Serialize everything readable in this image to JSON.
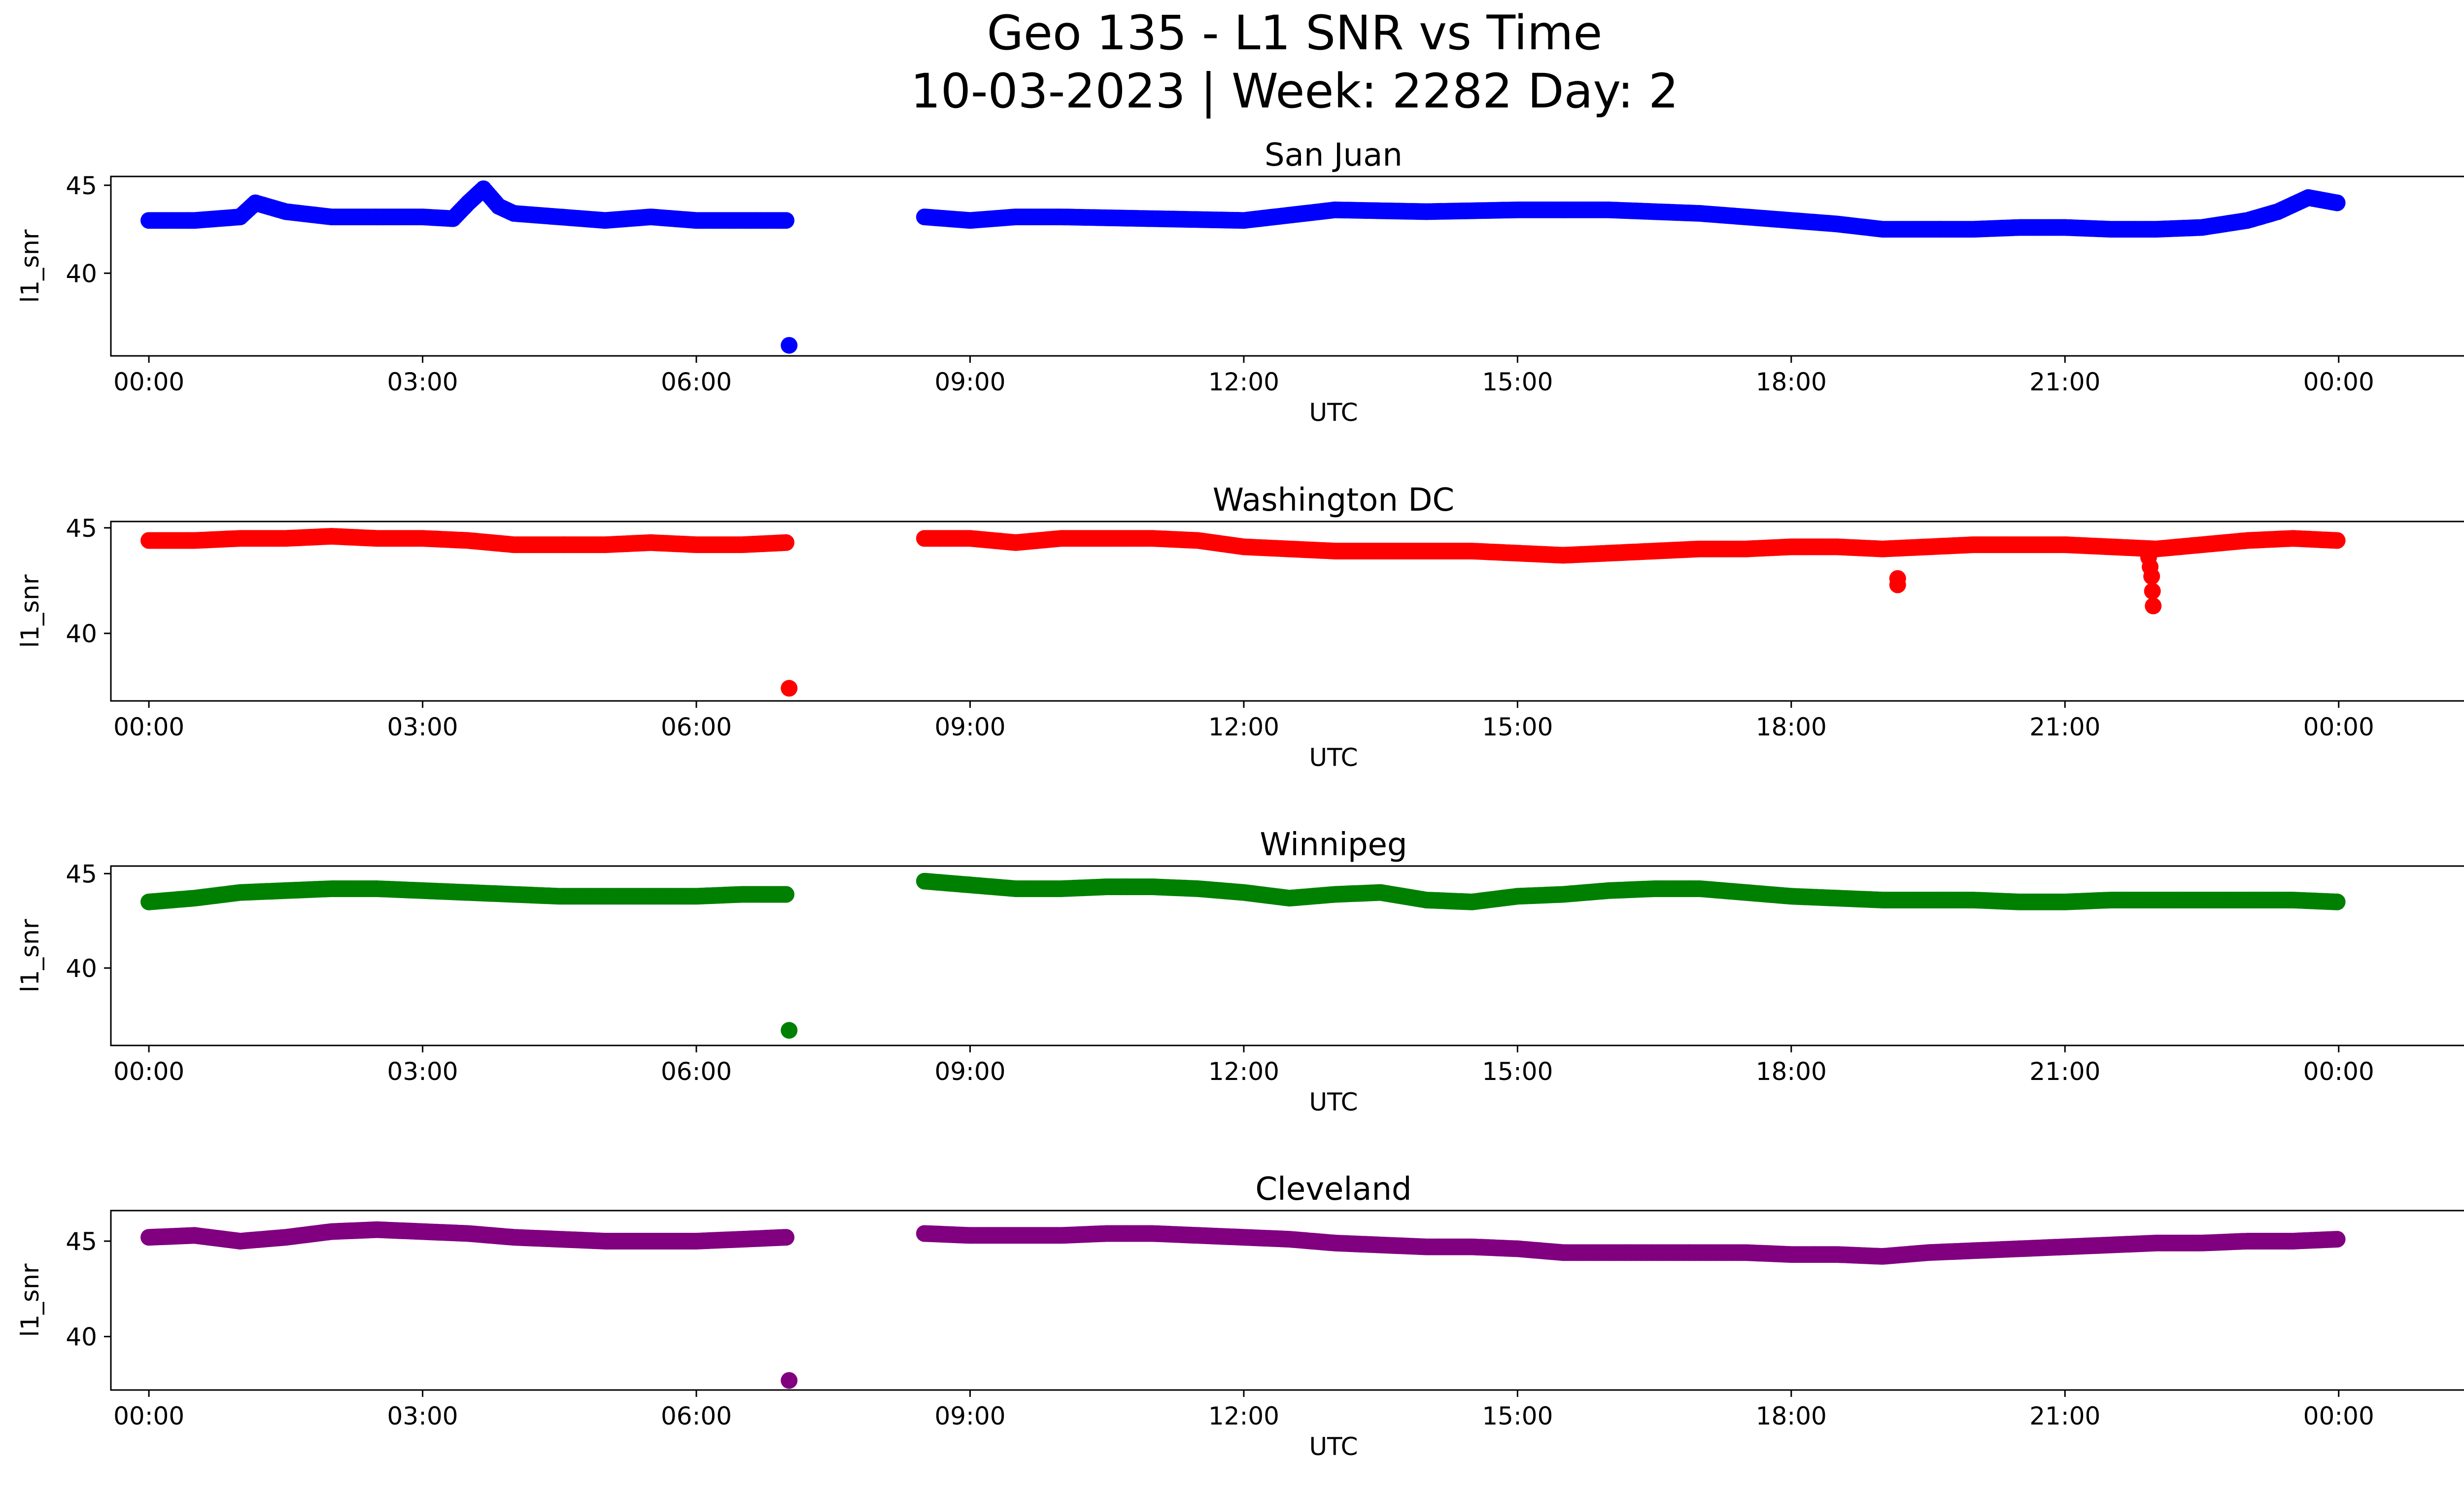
{
  "title_line1": "Geo 135 - L1 SNR vs Time",
  "title_line2": "10-03-2023 | Week: 2282 Day: 2",
  "chart_data": [
    {
      "type": "scatter",
      "title": "San Juan",
      "xlabel": "UTC",
      "ylabel": "l1_snr",
      "color": "#0000ff",
      "xlim": [
        "23:35",
        "+26:23"
      ],
      "ylim": [
        35.3,
        45.5
      ],
      "yticks": [
        40,
        45
      ],
      "xticks": [
        "00:00",
        "03:00",
        "06:00",
        "09:00",
        "12:00",
        "15:00",
        "18:00",
        "21:00",
        "00:00"
      ],
      "grid": false,
      "series": [
        {
          "x": [
            "00:00",
            "00:30",
            "01:00",
            "01:10",
            "01:30",
            "02:00",
            "02:30",
            "03:00",
            "03:20",
            "03:30",
            "03:40",
            "03:50",
            "04:00",
            "04:30",
            "05:00",
            "05:30",
            "06:00",
            "06:30",
            "06:59",
            "08:30",
            "09:00",
            "09:30",
            "10:00",
            "11:00",
            "12:00",
            "13:00",
            "14:00",
            "15:00",
            "16:00",
            "17:00",
            "17:30",
            "18:00",
            "18:30",
            "19:00",
            "19:30",
            "20:00",
            "20:30",
            "21:00",
            "21:30",
            "22:00",
            "22:30",
            "23:00",
            "23:20",
            "23:40",
            "23:59"
          ],
          "y": [
            43.0,
            43.0,
            43.2,
            44.0,
            43.5,
            43.2,
            43.2,
            43.2,
            43.1,
            44.0,
            44.8,
            43.8,
            43.4,
            43.2,
            43.0,
            43.2,
            43.0,
            43.0,
            43.0,
            43.2,
            43.0,
            43.2,
            43.2,
            43.1,
            43.0,
            43.6,
            43.5,
            43.6,
            43.6,
            43.4,
            43.2,
            43.0,
            42.8,
            42.5,
            42.5,
            42.5,
            42.6,
            42.6,
            42.5,
            42.5,
            42.6,
            43.0,
            43.5,
            44.3,
            44.0
          ]
        },
        {
          "x": [
            "07:01"
          ],
          "y": [
            35.9
          ]
        }
      ]
    },
    {
      "type": "scatter",
      "title": "Washington DC",
      "xlabel": "UTC",
      "ylabel": "l1_snr",
      "color": "#ff0000",
      "xlim": [
        "23:35",
        "+26:23"
      ],
      "ylim": [
        36.8,
        45.3
      ],
      "yticks": [
        40,
        45
      ],
      "xticks": [
        "00:00",
        "03:00",
        "06:00",
        "09:00",
        "12:00",
        "15:00",
        "18:00",
        "21:00",
        "00:00"
      ],
      "grid": false,
      "series": [
        {
          "x": [
            "00:00",
            "00:30",
            "01:00",
            "01:30",
            "02:00",
            "02:30",
            "03:00",
            "03:30",
            "04:00",
            "04:30",
            "05:00",
            "05:30",
            "06:00",
            "06:30",
            "06:59",
            "08:30",
            "09:00",
            "09:30",
            "10:00",
            "10:30",
            "11:00",
            "11:30",
            "12:00",
            "12:30",
            "13:00",
            "13:30",
            "14:00",
            "14:30",
            "15:00",
            "15:30",
            "16:00",
            "16:30",
            "17:00",
            "17:30",
            "18:00",
            "18:30",
            "19:00",
            "19:30",
            "20:00",
            "20:30",
            "21:00",
            "21:30",
            "22:00",
            "22:30",
            "23:00",
            "23:30",
            "23:59"
          ],
          "y": [
            44.4,
            44.4,
            44.5,
            44.5,
            44.6,
            44.5,
            44.5,
            44.4,
            44.2,
            44.2,
            44.2,
            44.3,
            44.2,
            44.2,
            44.3,
            44.5,
            44.5,
            44.3,
            44.5,
            44.5,
            44.5,
            44.4,
            44.1,
            44.0,
            43.9,
            43.9,
            43.9,
            43.9,
            43.8,
            43.7,
            43.8,
            43.9,
            44.0,
            44.0,
            44.1,
            44.1,
            44.0,
            44.1,
            44.2,
            44.2,
            44.2,
            44.1,
            44.0,
            44.2,
            44.4,
            44.5,
            44.4
          ]
        },
        {
          "x": [
            "19:10",
            "19:10",
            "21:55",
            "21:57",
            "21:58"
          ],
          "y": [
            42.6,
            42.3,
            43.6,
            42.7,
            41.3
          ]
        },
        {
          "x": [
            "07:01"
          ],
          "y": [
            37.4
          ]
        }
      ]
    },
    {
      "type": "scatter",
      "title": "Winnipeg",
      "xlabel": "UTC",
      "ylabel": "l1_snr",
      "color": "#008000",
      "xlim": [
        "23:35",
        "+26:23"
      ],
      "ylim": [
        35.9,
        45.4
      ],
      "yticks": [
        40,
        45
      ],
      "xticks": [
        "00:00",
        "03:00",
        "06:00",
        "09:00",
        "12:00",
        "15:00",
        "18:00",
        "21:00",
        "00:00"
      ],
      "grid": false,
      "series": [
        {
          "x": [
            "00:00",
            "00:30",
            "01:00",
            "01:30",
            "02:00",
            "02:30",
            "03:00",
            "03:30",
            "04:00",
            "04:30",
            "05:00",
            "05:30",
            "06:00",
            "06:30",
            "06:59",
            "08:30",
            "09:00",
            "09:30",
            "10:00",
            "10:30",
            "11:00",
            "11:30",
            "12:00",
            "12:30",
            "13:00",
            "13:30",
            "14:00",
            "14:30",
            "15:00",
            "15:30",
            "16:00",
            "16:30",
            "17:00",
            "17:30",
            "18:00",
            "18:30",
            "19:00",
            "19:30",
            "20:00",
            "20:30",
            "21:00",
            "21:30",
            "22:00",
            "22:30",
            "23:00",
            "23:30",
            "23:59"
          ],
          "y": [
            43.5,
            43.7,
            44.0,
            44.1,
            44.2,
            44.2,
            44.1,
            44.0,
            43.9,
            43.8,
            43.8,
            43.8,
            43.8,
            43.9,
            43.9,
            44.6,
            44.4,
            44.2,
            44.2,
            44.3,
            44.3,
            44.2,
            44.0,
            43.7,
            43.9,
            44.0,
            43.6,
            43.5,
            43.8,
            43.9,
            44.1,
            44.2,
            44.2,
            44.0,
            43.8,
            43.7,
            43.6,
            43.6,
            43.6,
            43.5,
            43.5,
            43.6,
            43.6,
            43.6,
            43.6,
            43.6,
            43.5
          ]
        },
        {
          "x": [
            "07:01"
          ],
          "y": [
            36.7
          ]
        }
      ]
    },
    {
      "type": "scatter",
      "title": "Cleveland",
      "xlabel": "UTC",
      "ylabel": "l1_snr",
      "color": "#800080",
      "xlim": [
        "23:35",
        "+26:23"
      ],
      "ylim": [
        37.2,
        46.6
      ],
      "yticks": [
        40,
        45
      ],
      "xticks": [
        "00:00",
        "03:00",
        "06:00",
        "09:00",
        "12:00",
        "15:00",
        "18:00",
        "21:00",
        "00:00"
      ],
      "grid": false,
      "series": [
        {
          "x": [
            "00:00",
            "00:30",
            "01:00",
            "01:30",
            "02:00",
            "02:30",
            "03:00",
            "03:30",
            "04:00",
            "04:30",
            "05:00",
            "05:30",
            "06:00",
            "06:30",
            "06:59",
            "08:30",
            "09:00",
            "09:30",
            "10:00",
            "10:30",
            "11:00",
            "11:30",
            "12:00",
            "12:30",
            "13:00",
            "13:30",
            "14:00",
            "14:30",
            "15:00",
            "15:30",
            "16:00",
            "16:30",
            "17:00",
            "17:30",
            "18:00",
            "18:30",
            "19:00",
            "19:30",
            "20:00",
            "20:30",
            "21:00",
            "21:30",
            "22:00",
            "22:30",
            "23:00",
            "23:30",
            "23:59"
          ],
          "y": [
            45.2,
            45.3,
            45.0,
            45.2,
            45.5,
            45.6,
            45.5,
            45.4,
            45.2,
            45.1,
            45.0,
            45.0,
            45.0,
            45.1,
            45.2,
            45.4,
            45.3,
            45.3,
            45.3,
            45.4,
            45.4,
            45.3,
            45.2,
            45.1,
            44.9,
            44.8,
            44.7,
            44.7,
            44.6,
            44.4,
            44.4,
            44.4,
            44.4,
            44.4,
            44.3,
            44.3,
            44.2,
            44.4,
            44.5,
            44.6,
            44.7,
            44.8,
            44.9,
            44.9,
            45.0,
            45.0,
            45.1
          ]
        },
        {
          "x": [
            "07:01"
          ],
          "y": [
            37.7
          ]
        }
      ]
    }
  ]
}
